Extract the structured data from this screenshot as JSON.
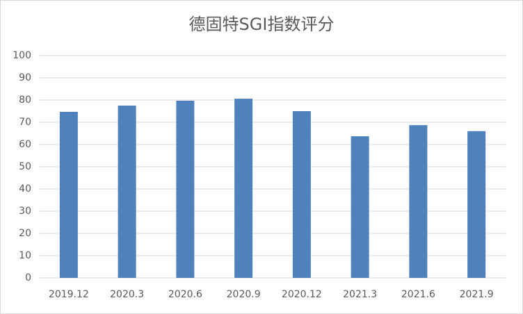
{
  "chart_data": {
    "type": "bar",
    "title": "德固特SGI指数评分",
    "categories": [
      "2019.12",
      "2020.3",
      "2020.6",
      "2020.9",
      "2020.12",
      "2021.3",
      "2021.6",
      "2021.9"
    ],
    "values": [
      74.7,
      77.5,
      79.7,
      80.6,
      75,
      63.7,
      68.7,
      66
    ],
    "color": "#4f81bd",
    "ylim": [
      0,
      100
    ],
    "yticks": [
      0,
      10,
      20,
      30,
      40,
      50,
      60,
      70,
      80,
      90,
      100
    ],
    "grid": true
  }
}
